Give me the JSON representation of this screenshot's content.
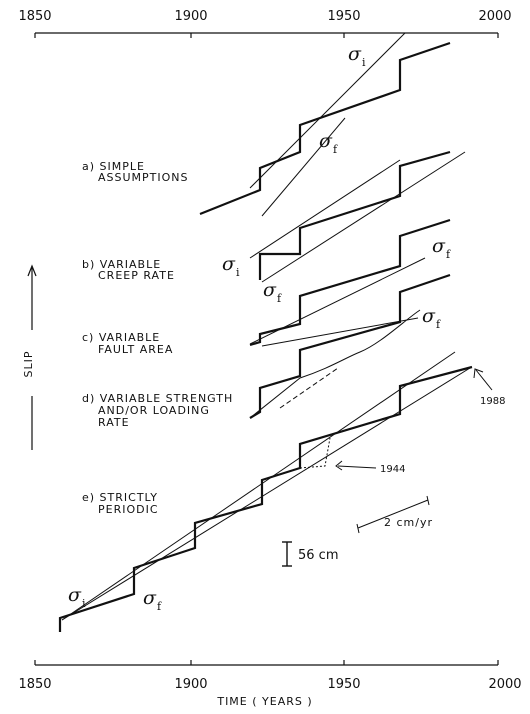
{
  "x_axis": {
    "ticks": [
      "1850",
      "1900",
      "1950",
      "2000"
    ],
    "title": "TIME ( YEARS )"
  },
  "y_axis": {
    "title": "SLIP"
  },
  "panels": [
    {
      "id": "a",
      "label_line1": "a)  SIMPLE",
      "label_line2": "ASSUMPTIONS"
    },
    {
      "id": "b",
      "label_line1": "b)  VARIABLE",
      "label_line2": "CREEP RATE"
    },
    {
      "id": "c",
      "label_line1": "c)  VARIABLE",
      "label_line2": "FAULT AREA"
    },
    {
      "id": "d",
      "label_line1": "d)  VARIABLE STRENGTH",
      "label_line2": "AND/OR LOADING",
      "label_line3": "RATE"
    },
    {
      "id": "e",
      "label_line1": "e)  STRICTLY",
      "label_line2": "PERIODIC"
    }
  ],
  "symbols": {
    "sigma": "σ",
    "sub_i": "i",
    "sub_f": "f"
  },
  "annotations": {
    "year_1944": "1944",
    "year_1988": "1988",
    "rate": "2 cm/yr",
    "scale": "56 cm"
  }
}
